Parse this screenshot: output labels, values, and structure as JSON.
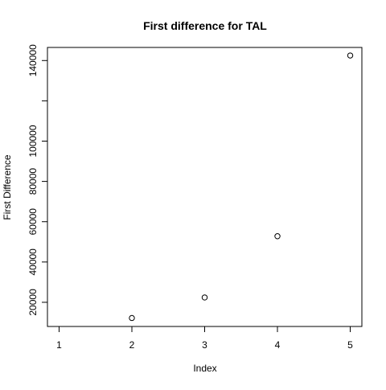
{
  "chart_data": {
    "type": "scatter",
    "title": "First difference for  TAL",
    "xlabel": "Index",
    "ylabel": "First Difference",
    "x": [
      1,
      2,
      3,
      4,
      5
    ],
    "y": [
      null,
      12200,
      22400,
      52800,
      142500
    ],
    "xlim": [
      0.84,
      5.16
    ],
    "ylim": [
      8000,
      146500
    ],
    "x_ticks": [
      1,
      2,
      3,
      4,
      5
    ],
    "x_tick_labels": [
      "1",
      "2",
      "3",
      "4",
      "5"
    ],
    "y_ticks": [
      20000,
      40000,
      60000,
      80000,
      100000,
      120000,
      140000
    ],
    "y_tick_labels": [
      "20000",
      "40000",
      "60000",
      "80000",
      "100000",
      "",
      "140000"
    ],
    "grid": false,
    "legend": "none",
    "marker": "open-circle",
    "colors": {
      "points": "#000000",
      "axes": "#000000",
      "background": "#ffffff"
    }
  }
}
